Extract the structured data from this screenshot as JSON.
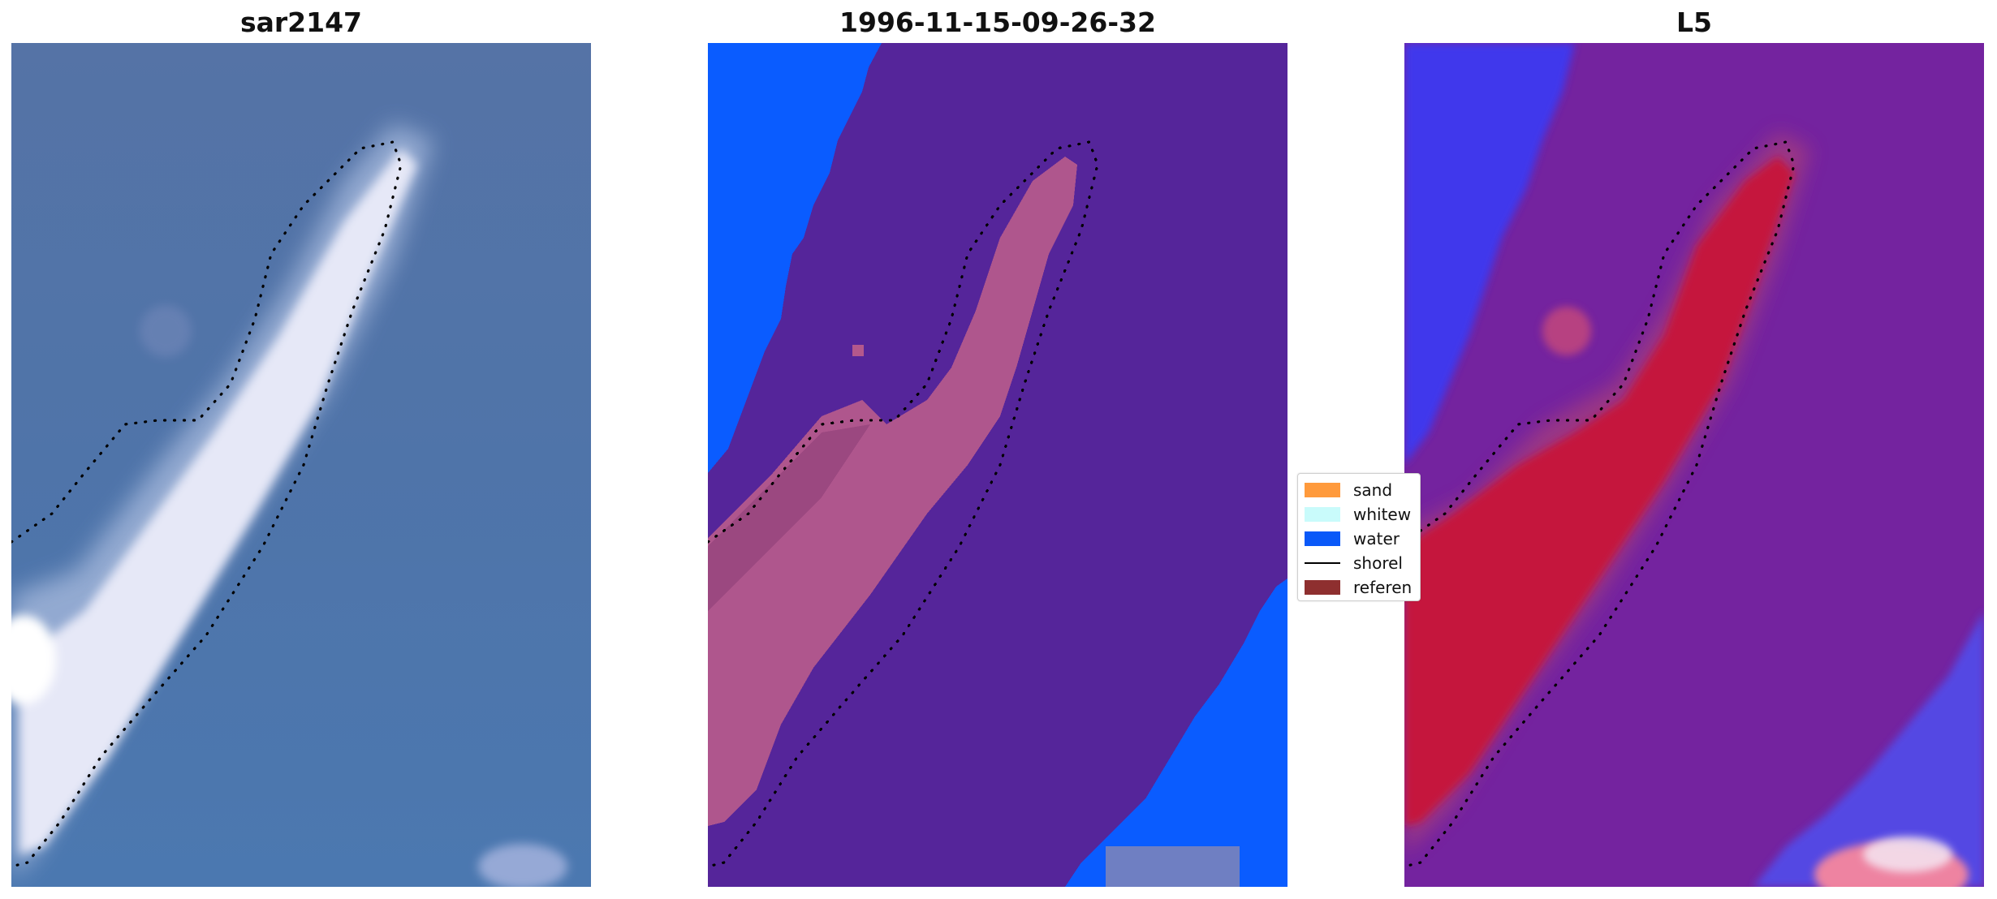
{
  "panels": [
    {
      "title": "sar2147",
      "kind": "rgb-image"
    },
    {
      "title": "1996-11-15-09-26-32",
      "kind": "classification"
    },
    {
      "title": "L5",
      "kind": "probability-map"
    }
  ],
  "legend": {
    "items": [
      {
        "label": "sand",
        "color": "#ff9a3c",
        "type": "patch"
      },
      {
        "label": "whitew",
        "color": "#c9fbfb",
        "type": "patch"
      },
      {
        "label": "water",
        "color": "#0a59f8",
        "type": "patch"
      },
      {
        "label": "shorel",
        "color": "#000000",
        "type": "line"
      },
      {
        "label": "referen",
        "color": "#8e2f2f",
        "type": "patch"
      }
    ]
  },
  "colors": {
    "classification_background": "#55259a",
    "classification_water": "#0a5cff",
    "classification_sand_overlay": "#b4588c",
    "rgb_water": "#4f75ad",
    "probability_background": "#74239f",
    "probability_sand": "#c5123c",
    "probability_water": "#3a3af5"
  }
}
